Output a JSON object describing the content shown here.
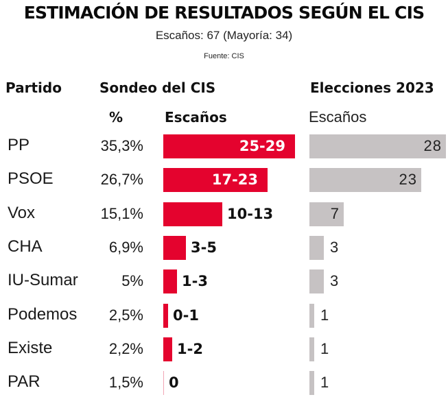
{
  "header": {
    "title": "ESTIMACIÓN DE RESULTADOS SEGÚN EL CIS",
    "subtitle": "Escaños: 67 (Mayoría: 34)",
    "source": "Fuente: CIS"
  },
  "columns": {
    "party": "Partido",
    "survey": "Sondeo del CIS",
    "survey_pct": "%",
    "survey_seats": "Escaños",
    "elections": "Elecciones 2023",
    "elections_seats": "Escaños"
  },
  "colors": {
    "survey_bar": "#e4032e",
    "elections_bar": "#c6c2c3"
  },
  "chart_data": {
    "type": "bar",
    "title": "ESTIMACIÓN DE RESULTADOS SEGÚN EL CIS",
    "subtitle": "Escaños: 67 (Mayoría: 34)",
    "categories": [
      "PP",
      "PSOE",
      "Vox",
      "CHA",
      "IU-Sumar",
      "Podemos",
      "Existe",
      "PAR"
    ],
    "series": [
      {
        "name": "Sondeo del CIS — %",
        "values": [
          35.3,
          26.7,
          15.1,
          6.9,
          5,
          2.5,
          2.2,
          1.5
        ],
        "labels": [
          "35,3%",
          "26,7%",
          "15,1%",
          "6,9%",
          "5%",
          "2,5%",
          "2,2%",
          "1,5%"
        ]
      },
      {
        "name": "Sondeo del CIS — Escaños",
        "min": [
          25,
          17,
          10,
          3,
          1,
          0,
          1,
          0
        ],
        "max": [
          29,
          23,
          13,
          5,
          3,
          1,
          2,
          0
        ],
        "labels": [
          "25-29",
          "17-23",
          "10-13",
          "3-5",
          "1-3",
          "0-1",
          "1-2",
          "0"
        ]
      },
      {
        "name": "Elecciones 2023 — Escaños",
        "values": [
          28,
          23,
          7,
          3,
          3,
          1,
          1,
          1
        ],
        "labels": [
          "28",
          "23",
          "7",
          "3",
          "3",
          "1",
          "1",
          "1"
        ]
      }
    ],
    "legend": "none",
    "grid": false
  }
}
